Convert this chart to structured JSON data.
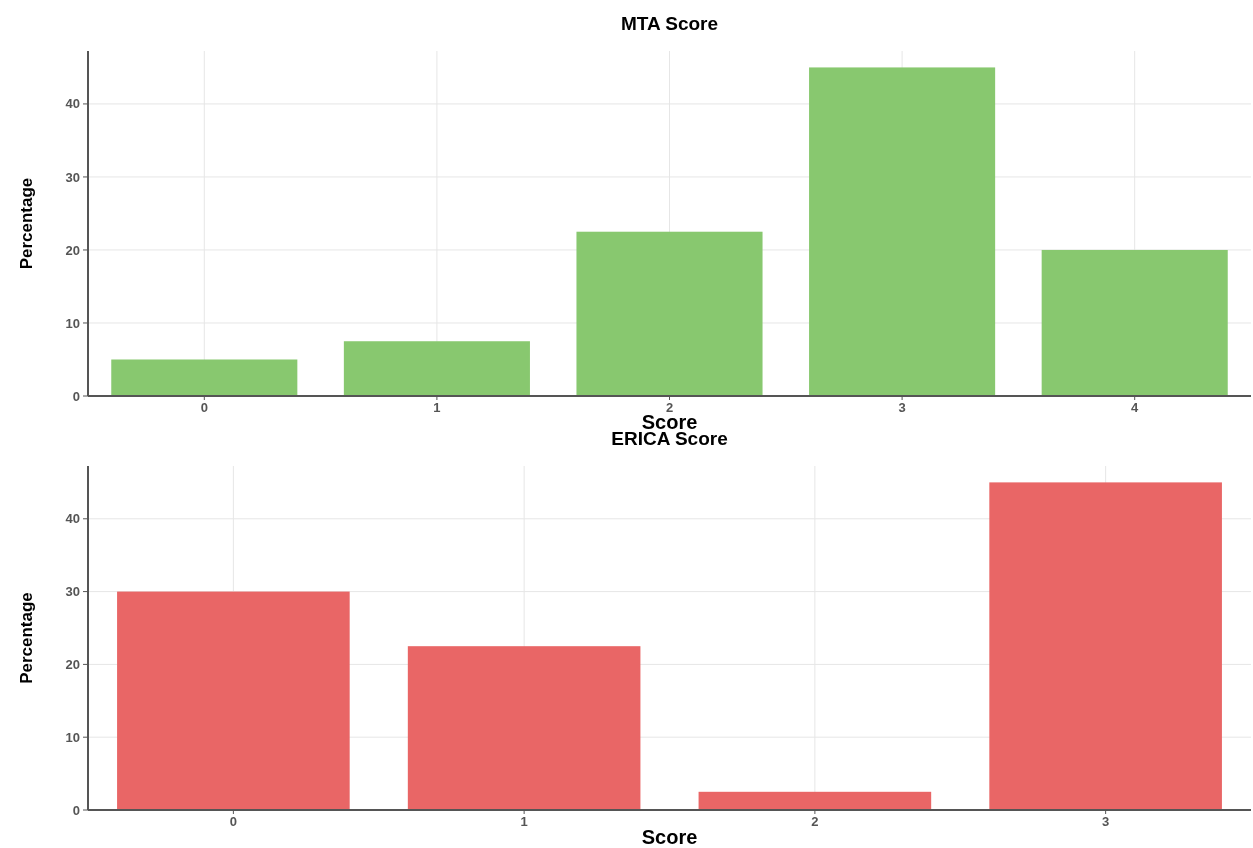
{
  "chart_data": [
    {
      "type": "bar",
      "title": "MTA Score",
      "xlabel": "Score",
      "ylabel": "Percentage",
      "categories": [
        "0",
        "1",
        "2",
        "3",
        "4"
      ],
      "values": [
        5,
        7.5,
        22.5,
        45,
        20
      ],
      "color": "#88c86f",
      "ylim": [
        0,
        47.25
      ],
      "yticks": [
        0,
        10,
        20,
        30,
        40
      ],
      "grid": true
    },
    {
      "type": "bar",
      "title": "ERICA Score",
      "xlabel": "Score",
      "ylabel": "Percentage",
      "categories": [
        "0",
        "1",
        "2",
        "3"
      ],
      "values": [
        30,
        22.5,
        2.5,
        45
      ],
      "color": "#e96666",
      "ylim": [
        0,
        47.25
      ],
      "yticks": [
        0,
        10,
        20,
        30,
        40
      ],
      "grid": true
    }
  ]
}
